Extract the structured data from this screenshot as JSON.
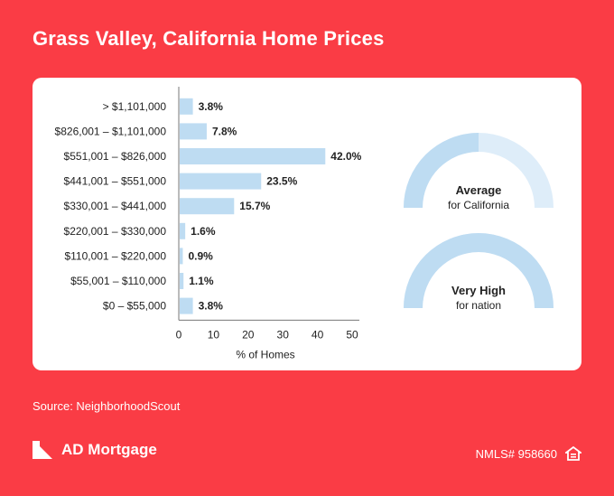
{
  "title": "Grass Valley, California Home Prices",
  "chart_data": {
    "type": "bar",
    "orientation": "horizontal",
    "categories": [
      "> $1,101,000",
      "$826,001 – $1,101,000",
      "$551,001 – $826,000",
      "$441,001 – $551,000",
      "$330,001 – $441,000",
      "$220,001 – $330,000",
      "$110,001 – $220,000",
      "$55,001 – $110,000",
      "$0 – $55,000"
    ],
    "values": [
      3.8,
      7.8,
      42.0,
      23.5,
      15.7,
      1.6,
      0.9,
      1.1,
      3.8
    ],
    "value_labels": [
      "3.8%",
      "7.8%",
      "42.0%",
      "23.5%",
      "15.7%",
      "1.6%",
      "0.9%",
      "1.1%",
      "3.8%"
    ],
    "xlabel": "% of Homes",
    "xlim": [
      0,
      50
    ],
    "xticks": [
      0,
      10,
      20,
      30,
      40,
      50
    ],
    "bar_color": "#bedcf2"
  },
  "gauges": [
    {
      "label": "Average",
      "sublabel": "for California",
      "fill": 0.5
    },
    {
      "label": "Very High",
      "sublabel": "for nation",
      "fill": 1.0
    }
  ],
  "colors": {
    "background": "#fa3c45",
    "bar": "#bedcf2",
    "gauge_fill": "#bedcf2",
    "gauge_track": "#deedf9"
  },
  "source": "Source: NeighborhoodScout",
  "brand": {
    "name": "AD Mortgage",
    "logo_icon": "ad-mortgage-logo"
  },
  "nmls": {
    "text": "NMLS# 958660",
    "icon": "equal-housing-icon"
  }
}
